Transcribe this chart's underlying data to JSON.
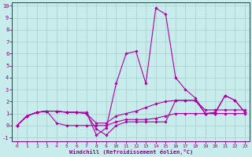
{
  "xlabel": "Windchill (Refroidissement éolien,°C)",
  "bg_color": "#c8ecec",
  "grid_color": "#aacccc",
  "line_color": "#aa00aa",
  "tick_color": "#880088",
  "xlim": [
    -0.5,
    23.5
  ],
  "ylim": [
    -1.3,
    10.3
  ],
  "xticks": [
    0,
    1,
    2,
    3,
    4,
    5,
    6,
    7,
    8,
    9,
    10,
    11,
    12,
    13,
    14,
    15,
    16,
    17,
    18,
    19,
    20,
    21,
    22,
    23
  ],
  "yticks": [
    -1,
    0,
    1,
    2,
    3,
    4,
    5,
    6,
    7,
    8,
    9,
    10
  ],
  "line1_x": [
    0,
    1,
    2,
    3,
    4,
    5,
    6,
    7,
    8,
    9,
    10,
    11,
    12,
    13,
    14,
    15,
    16,
    17,
    18,
    19,
    20,
    21,
    22,
    23
  ],
  "line1_y": [
    0.0,
    0.8,
    1.1,
    1.2,
    1.2,
    1.1,
    1.1,
    1.1,
    -0.8,
    -0.2,
    3.5,
    6.0,
    6.2,
    3.5,
    9.8,
    9.3,
    4.0,
    3.0,
    2.3,
    1.0,
    1.1,
    2.5,
    2.1,
    1.1
  ],
  "line2_x": [
    0,
    1,
    2,
    3,
    4,
    5,
    6,
    7,
    8,
    9,
    10,
    11,
    12,
    13,
    14,
    15,
    16,
    17,
    18,
    19,
    20,
    21,
    22,
    23
  ],
  "line2_y": [
    0.0,
    0.8,
    1.1,
    1.2,
    0.2,
    0.0,
    0.0,
    0.0,
    0.0,
    0.0,
    0.3,
    0.5,
    0.5,
    0.5,
    0.6,
    0.8,
    1.0,
    1.0,
    1.0,
    1.0,
    1.0,
    1.0,
    1.0,
    1.0
  ],
  "line3_x": [
    0,
    1,
    2,
    3,
    4,
    5,
    6,
    7,
    8,
    9,
    10,
    11,
    12,
    13,
    14,
    15,
    16,
    17,
    18,
    19,
    20,
    21,
    22,
    23
  ],
  "line3_y": [
    0.0,
    0.8,
    1.1,
    1.2,
    1.2,
    1.1,
    1.1,
    1.0,
    0.2,
    0.2,
    0.8,
    1.0,
    1.2,
    1.5,
    1.8,
    2.0,
    2.1,
    2.1,
    2.1,
    1.3,
    1.3,
    1.3,
    1.3,
    1.3
  ],
  "line4_x": [
    0,
    1,
    2,
    3,
    4,
    5,
    6,
    7,
    8,
    9,
    10,
    11,
    12,
    13,
    14,
    15,
    16,
    17,
    18,
    19,
    20,
    21,
    22,
    23
  ],
  "line4_y": [
    0.0,
    0.8,
    1.1,
    1.2,
    1.2,
    1.1,
    1.1,
    1.0,
    -0.3,
    -0.8,
    0.0,
    0.3,
    0.3,
    0.3,
    0.3,
    0.3,
    2.1,
    2.1,
    2.1,
    1.0,
    1.0,
    2.5,
    2.1,
    1.1
  ]
}
